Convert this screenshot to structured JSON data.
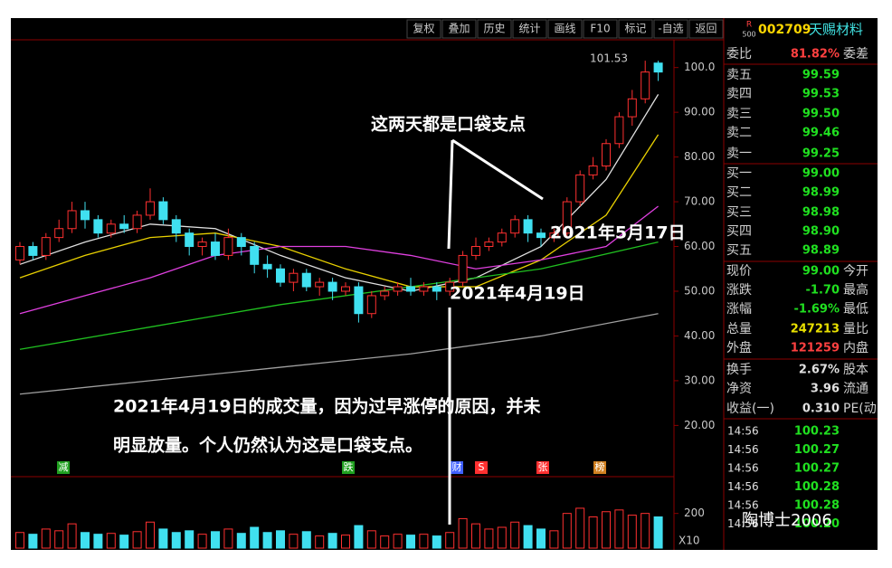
{
  "toolbar": [
    "复权",
    "叠加",
    "历史",
    "统计",
    "画线",
    "F10",
    "标记",
    "-自选",
    "返回"
  ],
  "quote": {
    "badge_top": "R",
    "badge_bottom": "500",
    "code": "002709",
    "name": "天赐材料",
    "rows": [
      {
        "label": "委比",
        "value": "81.82%",
        "trail": "委差",
        "color": "#ff4040"
      },
      {
        "label": "卖五",
        "value": "99.59",
        "color": "#20e020"
      },
      {
        "label": "卖四",
        "value": "99.53",
        "color": "#20e020"
      },
      {
        "label": "卖三",
        "value": "99.50",
        "color": "#20e020"
      },
      {
        "label": "卖二",
        "value": "99.46",
        "color": "#20e020"
      },
      {
        "label": "卖一",
        "value": "99.25",
        "color": "#20e020"
      },
      {
        "label": "买一",
        "value": "99.00",
        "color": "#20e020"
      },
      {
        "label": "买二",
        "value": "98.99",
        "color": "#20e020"
      },
      {
        "label": "买三",
        "value": "98.98",
        "color": "#20e020"
      },
      {
        "label": "买四",
        "value": "98.90",
        "color": "#20e020"
      },
      {
        "label": "买五",
        "value": "98.89",
        "color": "#20e020"
      },
      {
        "label": "现价",
        "value": "99.00",
        "trail": "今开",
        "color": "#20e020"
      },
      {
        "label": "涨跌",
        "value": "-1.70",
        "trail": "最高",
        "color": "#20e020"
      },
      {
        "label": "涨幅",
        "value": "-1.69%",
        "trail": "最低",
        "color": "#20e020"
      },
      {
        "label": "总量",
        "value": "247213",
        "trail": "量比",
        "color": "#e8e000"
      },
      {
        "label": "外盘",
        "value": "121259",
        "trail": "内盘",
        "color": "#ff4040"
      },
      {
        "label": "换手",
        "value": "2.67%",
        "trail": "股本",
        "color": "#e0e0e0"
      },
      {
        "label": "净资",
        "value": "3.96",
        "trail": "流通",
        "color": "#e0e0e0"
      },
      {
        "label": "收益(一)",
        "value": "0.310",
        "trail": "PE(动",
        "color": "#e0e0e0"
      }
    ],
    "ticks": [
      [
        "14:56",
        "100.23"
      ],
      [
        "14:56",
        "100.27"
      ],
      [
        "14:56",
        "100.27"
      ],
      [
        "14:56",
        "100.28"
      ],
      [
        "14:56",
        "100.28"
      ],
      [
        "14:56",
        "100.20"
      ]
    ]
  },
  "chart": {
    "ylim": [
      13,
      106
    ],
    "yticks": [
      {
        "value": 100,
        "label": "100.0"
      },
      {
        "value": 90,
        "label": "90.00"
      },
      {
        "value": 80,
        "label": "80.00"
      },
      {
        "value": 70,
        "label": "70.00"
      },
      {
        "value": 60,
        "label": "60.00"
      },
      {
        "value": 50,
        "label": "50.00"
      },
      {
        "value": 40,
        "label": "40.00"
      },
      {
        "value": 30,
        "label": "30.00"
      },
      {
        "value": 20,
        "label": "20.00"
      }
    ],
    "high_label": 101.53,
    "candles": [
      [
        57,
        60,
        61,
        56
      ],
      [
        60,
        58,
        61,
        57
      ],
      [
        58,
        62,
        63,
        57
      ],
      [
        62,
        64,
        66,
        61
      ],
      [
        64,
        68,
        70,
        63
      ],
      [
        68,
        66,
        70,
        64
      ],
      [
        66,
        63,
        67,
        62
      ],
      [
        63,
        65,
        66,
        62
      ],
      [
        65,
        64,
        67,
        63
      ],
      [
        64,
        67,
        68,
        63
      ],
      [
        67,
        70,
        73,
        66
      ],
      [
        70,
        66,
        71,
        65
      ],
      [
        66,
        63,
        67,
        61
      ],
      [
        63,
        60,
        64,
        58
      ],
      [
        60,
        61,
        62,
        58
      ],
      [
        61,
        58,
        63,
        57
      ],
      [
        58,
        62,
        64,
        57
      ],
      [
        62,
        60,
        63,
        58
      ],
      [
        60,
        56,
        61,
        54
      ],
      [
        56,
        55,
        58,
        53
      ],
      [
        55,
        52,
        56,
        51
      ],
      [
        52,
        54,
        55,
        50
      ],
      [
        54,
        51,
        55,
        50
      ],
      [
        51,
        52,
        53,
        49
      ],
      [
        52,
        50,
        53,
        48
      ],
      [
        50,
        51,
        52,
        49
      ],
      [
        51,
        45,
        52,
        43
      ],
      [
        45,
        49,
        50,
        44
      ],
      [
        49,
        50,
        51,
        48
      ],
      [
        50,
        51,
        52,
        49
      ],
      [
        51,
        50,
        53,
        49
      ],
      [
        50,
        51,
        52,
        49
      ],
      [
        51,
        50,
        52,
        48
      ],
      [
        50,
        52,
        53,
        49
      ],
      [
        52,
        58,
        59,
        51
      ],
      [
        58,
        60,
        62,
        57
      ],
      [
        60,
        61,
        62,
        59
      ],
      [
        61,
        63,
        64,
        60
      ],
      [
        63,
        66,
        67,
        62
      ],
      [
        66,
        63,
        67,
        61
      ],
      [
        63,
        62,
        64,
        60
      ],
      [
        62,
        63,
        64,
        61
      ],
      [
        63,
        70,
        71,
        62
      ],
      [
        70,
        76,
        77,
        69
      ],
      [
        76,
        78,
        80,
        75
      ],
      [
        78,
        83,
        84,
        77
      ],
      [
        83,
        89,
        90,
        82
      ],
      [
        89,
        93,
        95,
        87
      ],
      [
        93,
        99,
        101.53,
        92
      ],
      [
        101,
        99,
        101.53,
        97
      ]
    ],
    "ma_lines": [
      {
        "color": "#e0e0e0",
        "x": [
          0,
          5,
          10,
          15,
          20,
          25,
          30,
          35,
          40,
          45,
          49
        ],
        "values": [
          56,
          61,
          65,
          64,
          58,
          53,
          50,
          53,
          60,
          75,
          94
        ]
      },
      {
        "color": "#e8d000",
        "x": [
          0,
          5,
          10,
          15,
          20,
          25,
          30,
          35,
          40,
          45,
          49
        ],
        "values": [
          53,
          58,
          62,
          63,
          60,
          55,
          51,
          51,
          57,
          67,
          85
        ]
      },
      {
        "color": "#e040e0",
        "x": [
          0,
          5,
          10,
          15,
          20,
          25,
          30,
          35,
          40,
          45,
          49
        ],
        "values": [
          45,
          49,
          53,
          58,
          60,
          60,
          58,
          55,
          57,
          60,
          69
        ]
      },
      {
        "color": "#20c020",
        "x": [
          0,
          10,
          20,
          30,
          40,
          49
        ],
        "values": [
          37,
          42,
          47,
          51,
          55,
          61
        ]
      },
      {
        "color": "#a0a0a0",
        "x": [
          0,
          10,
          20,
          30,
          40,
          49
        ],
        "values": [
          27,
          30,
          33,
          36,
          40,
          45
        ]
      }
    ],
    "vlim": [
      0,
      240
    ],
    "vticks": [
      200
    ],
    "volume_unit": "X10",
    "volumes": [
      90,
      80,
      110,
      100,
      140,
      90,
      80,
      85,
      75,
      95,
      150,
      110,
      90,
      100,
      80,
      95,
      110,
      85,
      120,
      90,
      100,
      80,
      95,
      70,
      85,
      75,
      130,
      100,
      70,
      80,
      75,
      80,
      70,
      90,
      170,
      140,
      110,
      120,
      150,
      130,
      110,
      100,
      200,
      230,
      180,
      210,
      220,
      190,
      200,
      180
    ],
    "markers": [
      {
        "text": "减",
        "color": "#20a020"
      },
      {
        "text": "跌",
        "color": "#20a020"
      },
      {
        "text": "财",
        "color": "#4060ff"
      },
      {
        "text": "S",
        "color": "#ff3030"
      },
      {
        "text": "张",
        "color": "#ff3030"
      },
      {
        "text": "榜",
        "color": "#d08020"
      }
    ]
  },
  "annotations": {
    "pocket": "这两天都是口袋支点",
    "may17": "2021年5月17日",
    "apr19": "2021年4月19日",
    "note1": "2021年4月19日的成交量，因为过早涨停的原因，并未",
    "note2": "明显放量。个人仍然认为这是口袋支点。"
  },
  "watermark": "陶博士2006"
}
